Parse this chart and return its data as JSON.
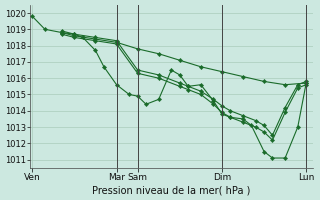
{
  "background_color": "#cce8e0",
  "grid_color": "#aaccbb",
  "line_color": "#1a6b2a",
  "marker_color": "#1a6b2a",
  "xlabel": "Pression niveau de la mer( hPa )",
  "ylim": [
    1010.5,
    1020.5
  ],
  "yticks": [
    1011,
    1012,
    1013,
    1014,
    1015,
    1016,
    1017,
    1018,
    1019,
    1020
  ],
  "xtick_labels": [
    "Ven",
    "Mar",
    "Sam",
    "Dim",
    "Lun"
  ],
  "xtick_positions": [
    0.0,
    2.0,
    2.5,
    4.5,
    6.5
  ],
  "vlines": [
    2.0,
    2.5,
    4.5,
    6.5
  ],
  "xlim": [
    -0.05,
    6.65
  ],
  "series": [
    {
      "x": [
        0.0,
        0.3,
        0.7,
        1.0,
        1.2,
        1.5,
        1.7,
        2.0,
        2.3,
        2.5,
        2.7,
        3.0,
        3.3,
        3.5,
        3.7,
        4.0,
        4.3,
        4.5,
        4.7,
        5.0,
        5.2,
        5.5,
        5.7,
        6.0,
        6.3,
        6.5
      ],
      "y": [
        1019.8,
        1019.0,
        1018.8,
        1018.7,
        1018.5,
        1017.7,
        1016.7,
        1015.6,
        1015.0,
        1014.9,
        1014.4,
        1014.7,
        1016.5,
        1016.2,
        1015.5,
        1015.6,
        1014.6,
        1013.8,
        1013.6,
        1013.5,
        1013.1,
        1011.5,
        1011.1,
        1011.1,
        1013.0,
        1015.7
      ]
    },
    {
      "x": [
        0.7,
        1.0,
        1.5,
        2.0,
        2.5,
        3.0,
        3.5,
        3.7,
        4.0,
        4.3,
        4.5,
        4.7,
        5.0,
        5.3,
        5.5,
        5.7,
        6.0,
        6.3,
        6.5
      ],
      "y": [
        1018.9,
        1018.7,
        1018.5,
        1018.3,
        1016.5,
        1016.2,
        1015.7,
        1015.5,
        1015.2,
        1014.7,
        1014.3,
        1014.0,
        1013.7,
        1013.4,
        1013.1,
        1012.5,
        1014.2,
        1015.6,
        1015.8
      ]
    },
    {
      "x": [
        0.7,
        1.0,
        1.5,
        2.0,
        2.5,
        3.0,
        3.5,
        3.7,
        4.0,
        4.3,
        4.5,
        4.7,
        5.0,
        5.3,
        5.5,
        5.7,
        6.0,
        6.3,
        6.5
      ],
      "y": [
        1018.7,
        1018.5,
        1018.3,
        1018.1,
        1016.3,
        1016.0,
        1015.5,
        1015.3,
        1015.0,
        1014.4,
        1013.9,
        1013.6,
        1013.3,
        1013.0,
        1012.7,
        1012.2,
        1013.9,
        1015.4,
        1015.6
      ]
    },
    {
      "x": [
        0.7,
        1.0,
        1.5,
        2.0,
        2.5,
        3.0,
        3.5,
        4.0,
        4.5,
        5.0,
        5.5,
        6.0,
        6.5
      ],
      "y": [
        1018.8,
        1018.6,
        1018.4,
        1018.2,
        1017.8,
        1017.5,
        1017.1,
        1016.7,
        1016.4,
        1016.1,
        1015.8,
        1015.6,
        1015.7
      ]
    }
  ]
}
